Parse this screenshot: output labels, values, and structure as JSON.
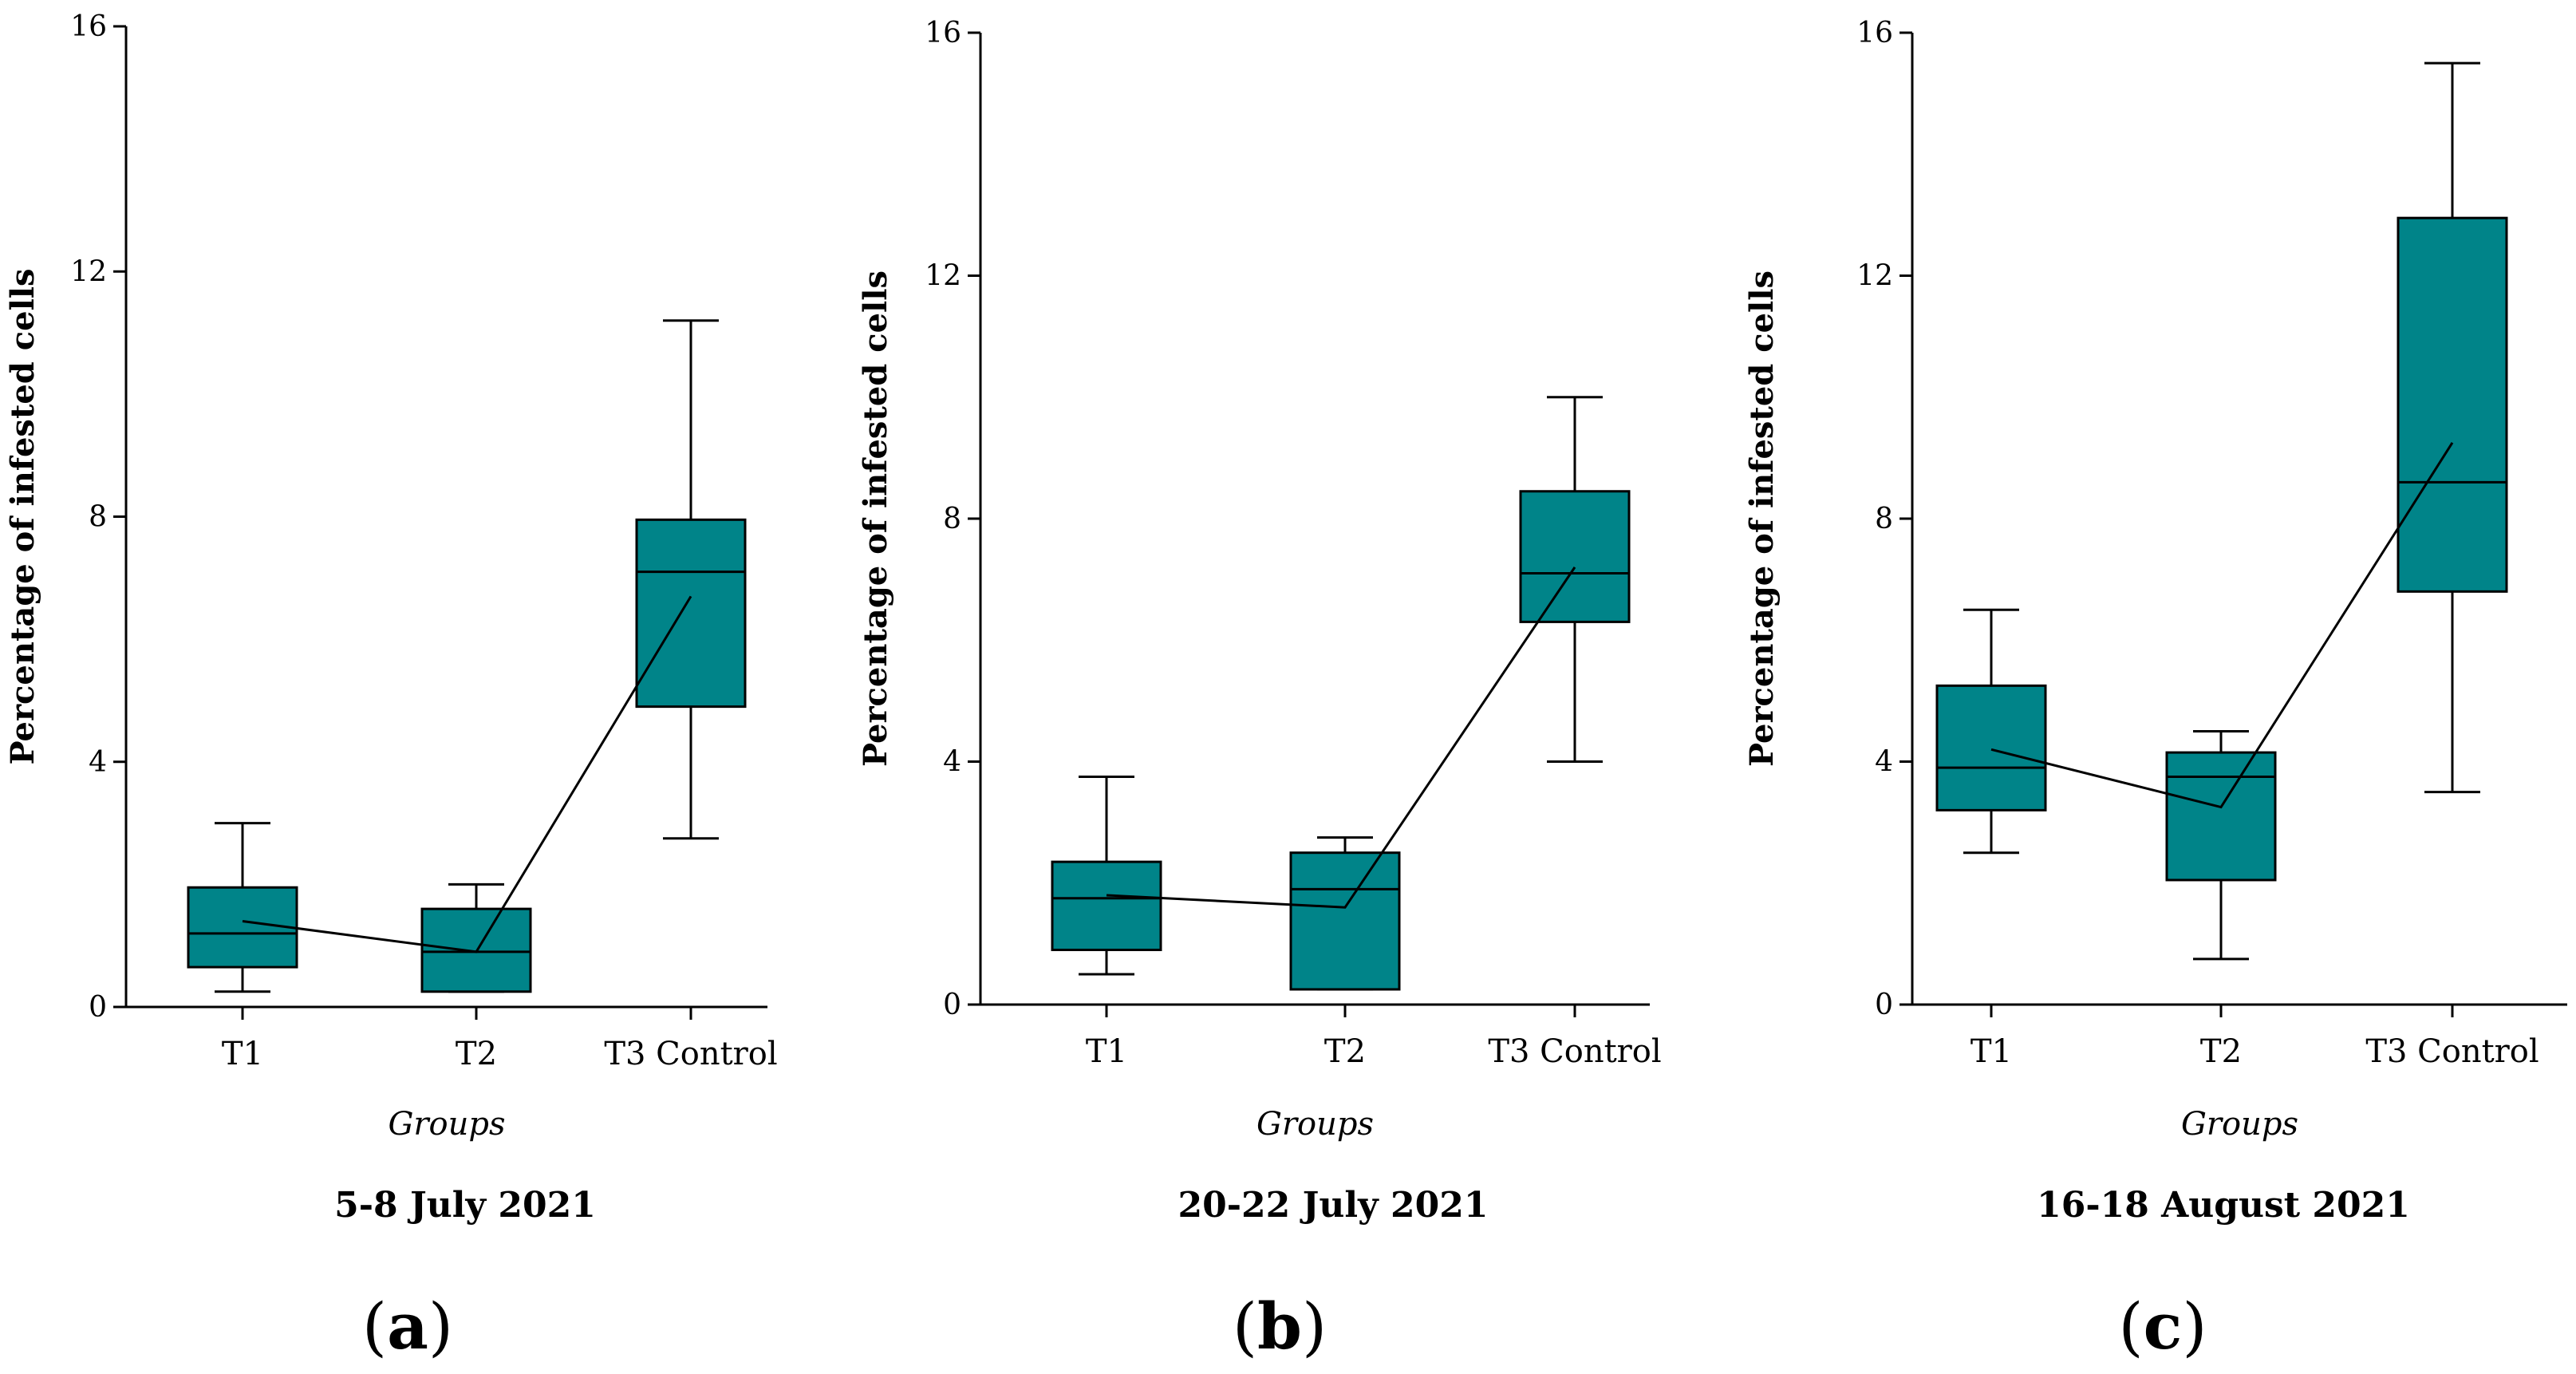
{
  "chart_data": [
    {
      "type": "box",
      "panel_label": {
        "open": "(",
        "letter": "a",
        "close": ")"
      },
      "title": "5-8 July 2021",
      "xlabel": "Groups",
      "ylabel": "Percentage of infested cells",
      "ylim": [
        0,
        16
      ],
      "yticks": [
        0,
        4,
        8,
        12,
        16
      ],
      "categories": [
        "T1",
        "T2",
        "T3 Control"
      ],
      "boxes": [
        {
          "min": 0.25,
          "q1": 0.65,
          "median": 1.2,
          "q3": 1.95,
          "max": 3.0
        },
        {
          "min": 0.25,
          "q1": 0.25,
          "median": 0.9,
          "q3": 1.6,
          "max": 2.0
        },
        {
          "min": 2.75,
          "q1": 4.9,
          "median": 7.1,
          "q3": 7.95,
          "max": 11.2
        }
      ],
      "mean_line": [
        1.4,
        0.9,
        6.7
      ],
      "box_color": "#008489"
    },
    {
      "type": "box",
      "panel_label": {
        "open": "(",
        "letter": "b",
        "close": ")"
      },
      "title": "20-22 July 2021",
      "xlabel": "Groups",
      "ylabel": "Percentage of infested cells",
      "ylim": [
        0,
        16
      ],
      "yticks": [
        0,
        4,
        8,
        12,
        16
      ],
      "categories": [
        "T1",
        "T2",
        "T3 Control"
      ],
      "boxes": [
        {
          "min": 0.5,
          "q1": 0.9,
          "median": 1.75,
          "q3": 2.35,
          "max": 3.75
        },
        {
          "min": 0.25,
          "q1": 0.25,
          "median": 1.9,
          "q3": 2.5,
          "max": 2.75
        },
        {
          "min": 4.0,
          "q1": 6.3,
          "median": 7.1,
          "q3": 8.45,
          "max": 10.0
        }
      ],
      "mean_line": [
        1.8,
        1.6,
        7.2
      ],
      "box_color": "#008489"
    },
    {
      "type": "box",
      "panel_label": {
        "open": "(",
        "letter": "c",
        "close": ")"
      },
      "title": "16-18 August 2021",
      "xlabel": "Groups",
      "ylabel": "Percentage of infested cells",
      "ylim": [
        0,
        16
      ],
      "yticks": [
        0,
        4,
        8,
        12,
        16
      ],
      "categories": [
        "T1",
        "T2",
        "T3 Control"
      ],
      "boxes": [
        {
          "min": 2.5,
          "q1": 3.2,
          "median": 3.9,
          "q3": 5.25,
          "max": 6.5
        },
        {
          "min": 0.75,
          "q1": 2.05,
          "median": 3.75,
          "q3": 4.15,
          "max": 4.5
        },
        {
          "min": 3.5,
          "q1": 6.8,
          "median": 8.6,
          "q3": 12.95,
          "max": 15.5
        }
      ],
      "mean_line": [
        4.2,
        3.25,
        9.25
      ],
      "box_color": "#008489"
    }
  ]
}
